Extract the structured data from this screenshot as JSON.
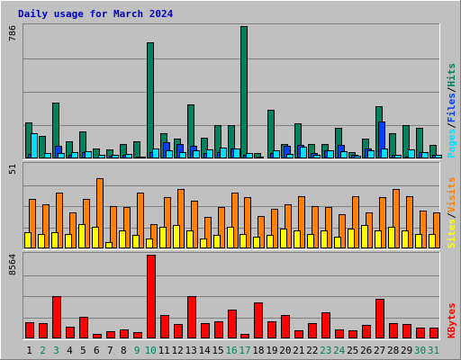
{
  "colors": {
    "background": "#c0c0c0",
    "frame_light": "#ffffff",
    "frame_dark": "#808080",
    "grid": "#808080",
    "title": "#0000c0",
    "weekday": "#000000",
    "weekend": "#00805c",
    "hits": "#00805c",
    "files": "#0040ff",
    "pages": "#00e0ff",
    "visits": "#ff8000",
    "sites": "#ffff00",
    "kbytes": "#ff0000"
  },
  "chart_data": {
    "type": "bar",
    "title": "Daily usage for March 2024",
    "days": [
      "1",
      "2",
      "3",
      "4",
      "5",
      "6",
      "7",
      "8",
      "9",
      "10",
      "11",
      "12",
      "13",
      "14",
      "15",
      "16",
      "17",
      "18",
      "19",
      "20",
      "21",
      "22",
      "23",
      "24",
      "25",
      "26",
      "27",
      "28",
      "29",
      "30",
      "31"
    ],
    "weekend_days": [
      2,
      3,
      9,
      10,
      16,
      17,
      23,
      24,
      30,
      31
    ],
    "panels": [
      {
        "name": "hits-files-pages",
        "ymax_label": "786",
        "ymax": 786,
        "legend": [
          "Pages",
          "Files",
          "Hits"
        ],
        "legend_separator": "/",
        "series": [
          {
            "name": "Hits",
            "values": [
              212,
              132,
              334,
              100,
              162,
              58,
              52,
              84,
              104,
              690,
              148,
              118,
              320,
              124,
              196,
              200,
              786,
              30,
              290,
              88,
              208,
              88,
              84,
              184,
              38,
              116,
              310,
              148,
              198,
              180,
              80
            ]
          },
          {
            "name": "Files",
            "values": [
              26,
              8,
              74,
              20,
              40,
              8,
              18,
              20,
              10,
              36,
              96,
              86,
              74,
              30,
              40,
              60,
              22,
              12,
              32,
              76,
              80,
              34,
              46,
              80,
              24,
              60,
              220,
              22,
              10,
              36,
              24
            ]
          },
          {
            "name": "Pages",
            "values": [
              152,
              30,
              30,
              38,
              44,
              20,
              22,
              26,
              10,
              60,
              46,
              40,
              50,
              54,
              62,
              60,
              30,
              8,
              46,
              26,
              72,
              22,
              50,
              42,
              18,
              48,
              58,
              20,
              56,
              40,
              22
            ]
          }
        ]
      },
      {
        "name": "visits-sites",
        "ymax_label": "51",
        "ymax": 51,
        "legend": [
          "Sites",
          "Visits"
        ],
        "legend_separator": "/",
        "series": [
          {
            "name": "Visits",
            "values": [
              30,
              27,
              34,
              22,
              30,
              43,
              26,
              25,
              34,
              15,
              31,
              36,
              29,
              19,
              25,
              34,
              31,
              20,
              24,
              27,
              32,
              26,
              25,
              21,
              32,
              22,
              31,
              36,
              32,
              23,
              22
            ]
          },
          {
            "name": "Sites",
            "values": [
              10,
              9,
              10,
              9,
              15,
              13,
              4,
              11,
              8,
              6,
              13,
              14,
              11,
              6,
              8,
              13,
              9,
              7,
              8,
              12,
              11,
              9,
              11,
              7,
              12,
              14,
              11,
              13,
              11,
              9,
              9
            ]
          }
        ]
      },
      {
        "name": "kbytes",
        "ymax_label": "8564",
        "ymax": 8564,
        "legend": [
          "KBytes"
        ],
        "legend_separator": "/",
        "series": [
          {
            "name": "KBytes",
            "values": [
              1700,
              1524,
              4316,
              1234,
              2182,
              418,
              692,
              906,
              640,
              8564,
              2390,
              1470,
              4316,
              1554,
              1726,
              2939,
              449,
              3703,
              1775,
              2424,
              855,
              1556,
              2662,
              935,
              800,
              1403,
              4034,
              1527,
              1489,
              1130,
              1078
            ]
          }
        ]
      }
    ]
  }
}
